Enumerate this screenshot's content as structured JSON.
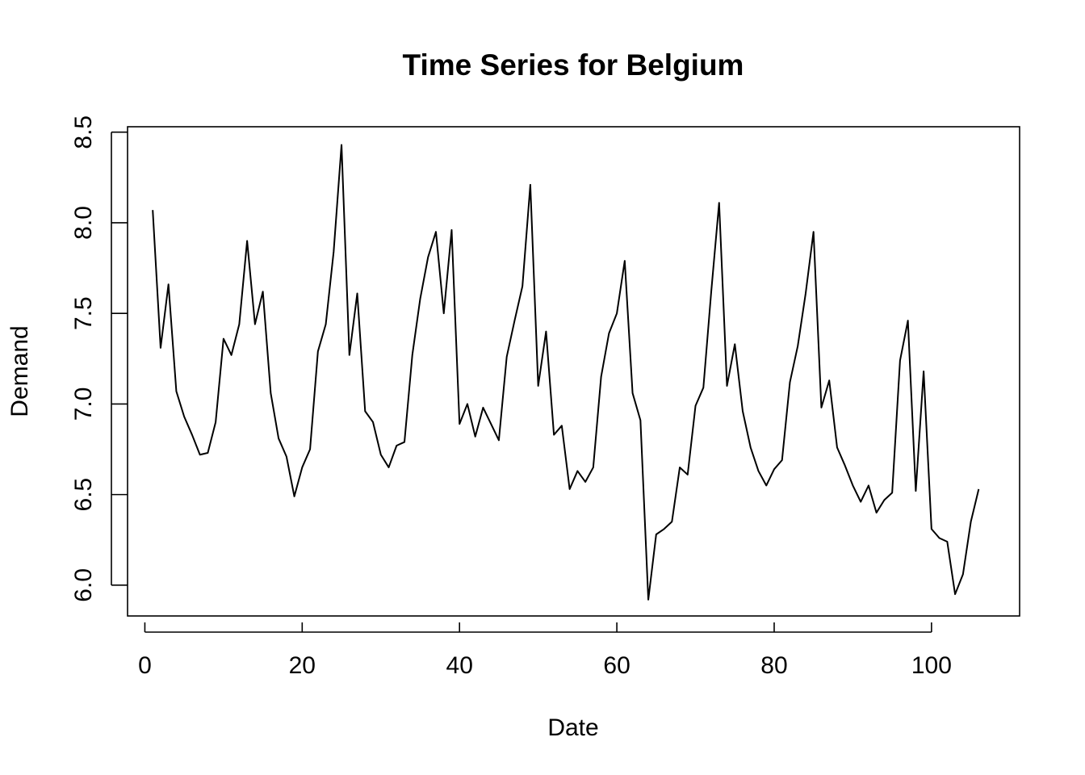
{
  "chart_data": {
    "type": "line",
    "title": "Time Series for Belgium",
    "xlabel": "Date",
    "ylabel": "Demand",
    "xlim": [
      -2.2,
      111.2
    ],
    "ylim": [
      5.83,
      8.53
    ],
    "x_ticks": [
      0,
      20,
      40,
      60,
      80,
      100
    ],
    "y_ticks": [
      6.0,
      6.5,
      7.0,
      7.5,
      8.0,
      8.5
    ],
    "x_tick_labels": [
      "0",
      "20",
      "40",
      "60",
      "80",
      "100"
    ],
    "y_tick_labels": [
      "6.0",
      "6.5",
      "7.0",
      "7.5",
      "8.0",
      "8.5"
    ],
    "grid": false,
    "line_color": "#000000",
    "x": [
      1,
      2,
      3,
      4,
      5,
      6,
      7,
      8,
      9,
      10,
      11,
      12,
      13,
      14,
      15,
      16,
      17,
      18,
      19,
      20,
      21,
      22,
      23,
      24,
      25,
      26,
      27,
      28,
      29,
      30,
      31,
      32,
      33,
      34,
      35,
      36,
      37,
      38,
      39,
      40,
      41,
      42,
      43,
      44,
      45,
      46,
      47,
      48,
      49,
      50,
      51,
      52,
      53,
      54,
      55,
      56,
      57,
      58,
      59,
      60,
      61,
      62,
      63,
      64,
      65,
      66,
      67,
      68,
      69,
      70,
      71,
      72,
      73,
      74,
      75,
      76,
      77,
      78,
      79,
      80,
      81,
      82,
      83,
      84,
      85,
      86,
      87,
      88,
      89,
      90,
      91,
      92,
      93,
      94,
      95,
      96,
      97,
      98,
      99,
      100,
      101,
      102,
      103,
      104,
      105,
      106
    ],
    "values": [
      8.07,
      7.31,
      7.66,
      7.07,
      6.93,
      6.83,
      6.72,
      6.73,
      6.9,
      7.36,
      7.27,
      7.44,
      7.9,
      7.44,
      7.62,
      7.06,
      6.81,
      6.71,
      6.49,
      6.65,
      6.75,
      7.29,
      7.44,
      7.84,
      8.43,
      7.27,
      7.61,
      6.96,
      6.9,
      6.72,
      6.65,
      6.77,
      6.79,
      7.27,
      7.58,
      7.81,
      7.95,
      7.5,
      7.96,
      6.89,
      7.0,
      6.82,
      6.98,
      6.89,
      6.8,
      7.26,
      7.46,
      7.65,
      8.21,
      7.1,
      7.4,
      6.83,
      6.88,
      6.53,
      6.63,
      6.57,
      6.65,
      7.15,
      7.39,
      7.5,
      7.79,
      7.06,
      6.91,
      5.92,
      6.28,
      6.31,
      6.35,
      6.65,
      6.61,
      6.99,
      7.09,
      7.62,
      8.11,
      7.1,
      7.33,
      6.96,
      6.76,
      6.63,
      6.55,
      6.64,
      6.69,
      7.12,
      7.32,
      7.61,
      7.95,
      6.98,
      7.13,
      6.76,
      6.66,
      6.55,
      6.46,
      6.55,
      6.4,
      6.47,
      6.51,
      7.24,
      7.46,
      6.52,
      7.18,
      6.31,
      6.26,
      6.24,
      5.95,
      6.06,
      6.35,
      6.53
    ]
  }
}
